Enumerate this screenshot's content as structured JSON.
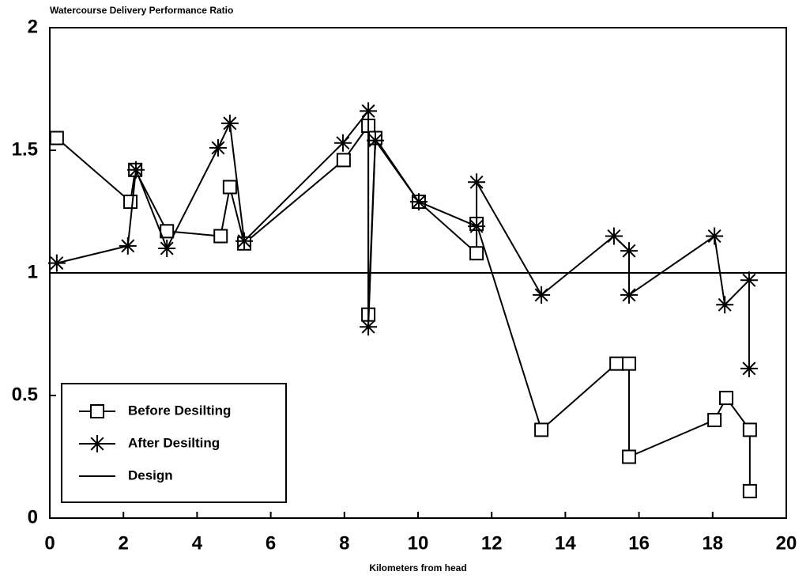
{
  "chart_data": {
    "type": "line",
    "title": "Watercourse Delivery Performance Ratio",
    "x_label": "Kilometers from head",
    "xlim": [
      0,
      20
    ],
    "xticks": [
      0,
      2,
      4,
      6,
      8,
      10,
      12,
      14,
      16,
      18,
      20
    ],
    "ylim": [
      0,
      2
    ],
    "yticks": [
      0,
      0.5,
      1,
      1.5,
      2
    ],
    "grid": false,
    "legend": "lower left",
    "series": [
      {
        "name": "Before Desilting",
        "color": "#000000",
        "marker": "square",
        "x": [
          0.19,
          2.19,
          2.32,
          3.18,
          4.64,
          4.89,
          5.28,
          7.98,
          8.65,
          8.65,
          8.84,
          10.02,
          11.59,
          11.59,
          13.35,
          15.39,
          15.73,
          15.73,
          18.05,
          18.37,
          19.01,
          19.01
        ],
        "values": [
          1.55,
          1.29,
          1.42,
          1.17,
          1.15,
          1.35,
          1.12,
          1.46,
          1.6,
          0.83,
          1.55,
          1.29,
          1.08,
          1.2,
          0.36,
          0.63,
          0.63,
          0.25,
          0.4,
          0.49,
          0.36,
          0.11
        ]
      },
      {
        "name": "After Desilting",
        "color": "#000000",
        "marker": "star",
        "x": [
          0.19,
          2.12,
          2.34,
          3.18,
          4.57,
          4.89,
          5.28,
          7.96,
          8.65,
          8.65,
          8.84,
          10.02,
          11.59,
          11.59,
          13.35,
          15.32,
          15.73,
          15.73,
          18.05,
          18.33,
          18.99,
          18.99
        ],
        "values": [
          1.04,
          1.11,
          1.42,
          1.1,
          1.51,
          1.61,
          1.13,
          1.53,
          1.66,
          0.78,
          1.54,
          1.29,
          1.19,
          1.37,
          0.91,
          1.15,
          1.09,
          0.91,
          1.15,
          0.87,
          0.97,
          0.61
        ]
      },
      {
        "name": "Design",
        "color": "#000000",
        "x": [
          0,
          20
        ],
        "values": [
          1,
          1
        ]
      }
    ]
  }
}
